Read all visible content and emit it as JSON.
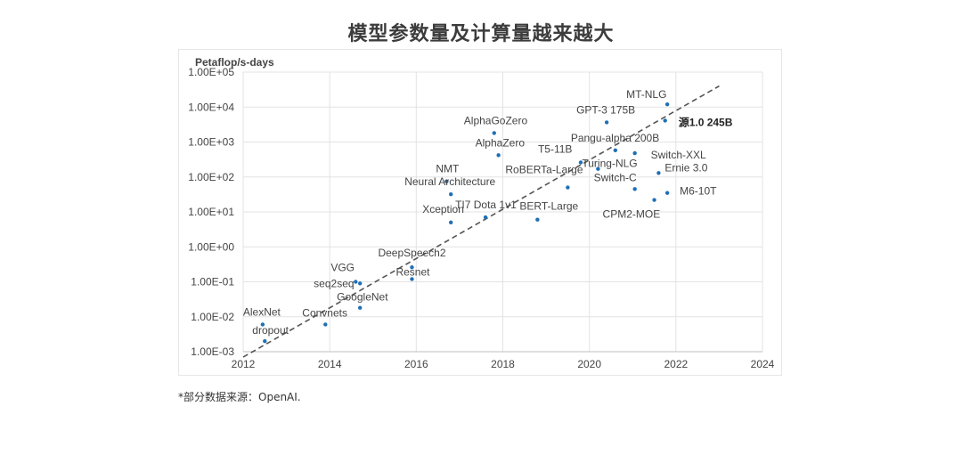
{
  "title": "模型参数量及计算量越来越大",
  "footnote": "*部分数据来源：OpenAI.",
  "colors": {
    "point": "#1f6fb5",
    "trend": "#555555",
    "grid": "#e3e3e3"
  },
  "chart_data": {
    "type": "scatter",
    "ylabel": "Petaflop/s-days",
    "xlabel": "",
    "y_scale": "log",
    "xlim": [
      2012,
      2024
    ],
    "ylim": [
      0.001,
      100000
    ],
    "x_ticks": [
      "2012",
      "2014",
      "2016",
      "2018",
      "2020",
      "2022",
      "2024"
    ],
    "y_ticks": [
      "1.00E-03",
      "1.00E-02",
      "1.00E-01",
      "1.00E+00",
      "1.00E+01",
      "1.00E+02",
      "1.00E+03",
      "1.00E+04",
      "1.00E+05"
    ],
    "grid": true,
    "trendline": {
      "x": [
        2012,
        2023
      ],
      "y": [
        0.0007,
        40000
      ],
      "style": "dashed"
    },
    "points": [
      {
        "label": "AlexNet",
        "x": 2012.45,
        "y": 0.006
      },
      {
        "label": "dropout",
        "x": 2012.5,
        "y": 0.002
      },
      {
        "label": "Convnets",
        "x": 2013.9,
        "y": 0.006
      },
      {
        "label": "VGG",
        "x": 2014.6,
        "y": 0.1
      },
      {
        "label": "seq2seq",
        "x": 2014.7,
        "y": 0.09
      },
      {
        "label": "GoogleNet",
        "x": 2014.7,
        "y": 0.018
      },
      {
        "label": "DeepSpeech2",
        "x": 2015.9,
        "y": 0.26
      },
      {
        "label": "Resnet",
        "x": 2015.9,
        "y": 0.12
      },
      {
        "label": "NMT",
        "x": 2016.7,
        "y": 75
      },
      {
        "label": "Neural Architecture",
        "x": 2016.8,
        "y": 32
      },
      {
        "label": "Xception",
        "x": 2016.8,
        "y": 5
      },
      {
        "label": "TI7 Dota 1v1",
        "x": 2017.6,
        "y": 7
      },
      {
        "label": "AlphaGoZero",
        "x": 2017.8,
        "y": 1800
      },
      {
        "label": "AlphaZero",
        "x": 2017.9,
        "y": 420
      },
      {
        "label": "BERT-Large",
        "x": 2018.8,
        "y": 6
      },
      {
        "label": "RoBERTa-Large",
        "x": 2019.5,
        "y": 50
      },
      {
        "label": "T5-11B",
        "x": 2019.8,
        "y": 260
      },
      {
        "label": "Turing-NLG",
        "x": 2020.2,
        "y": 170
      },
      {
        "label": "GPT-3 175B",
        "x": 2020.4,
        "y": 3640
      },
      {
        "label": "Pangu-alpha 200B",
        "x": 2020.6,
        "y": 580
      },
      {
        "label": "Switch-C",
        "x": 2021.05,
        "y": 45
      },
      {
        "label": "Switch-XXL",
        "x": 2021.05,
        "y": 480
      },
      {
        "label": "CPM2-MOE",
        "x": 2021.5,
        "y": 22
      },
      {
        "label": "Ernie 3.0",
        "x": 2021.6,
        "y": 130
      },
      {
        "label": "MT-NLG",
        "x": 2021.8,
        "y": 12000
      },
      {
        "label": "源1.0 245B",
        "x": 2021.75,
        "y": 4100
      },
      {
        "label": "M6-10T",
        "x": 2021.8,
        "y": 35
      }
    ]
  }
}
